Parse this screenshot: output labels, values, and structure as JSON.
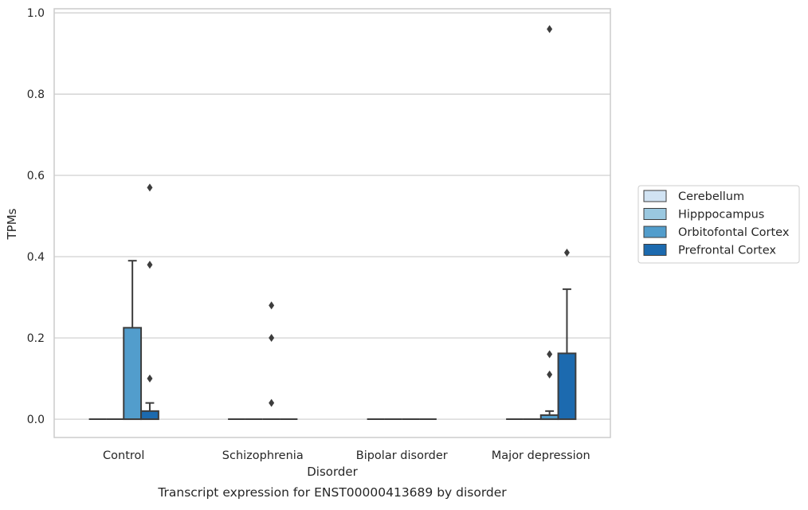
{
  "chart_data": {
    "type": "boxplot",
    "caption": "Transcript expression for ENST00000413689 by disorder",
    "xlabel": "Disorder",
    "ylabel": "TPMs",
    "ylim": [
      -0.045,
      1.01
    ],
    "yticks": [
      0.0,
      0.2,
      0.4,
      0.6,
      0.8,
      1.0
    ],
    "ytick_labels": [
      "0.0",
      "0.2",
      "0.4",
      "0.6",
      "0.8",
      "1.0"
    ],
    "grid": "horizontal",
    "legend_position": "right",
    "categories": [
      "Control",
      "Schizophrenia",
      "Bipolar disorder",
      "Major depression"
    ],
    "series": [
      {
        "name": "Cerebellum",
        "color": "#d1e3f3",
        "boxes": [
          {
            "q1": 0,
            "median": 0,
            "q3": 0,
            "whislo": 0,
            "whishi": 0,
            "fliers": []
          },
          {
            "q1": 0,
            "median": 0,
            "q3": 0,
            "whislo": 0,
            "whishi": 0,
            "fliers": []
          },
          {
            "q1": 0,
            "median": 0,
            "q3": 0,
            "whislo": 0,
            "whishi": 0,
            "fliers": []
          },
          {
            "q1": 0,
            "median": 0,
            "q3": 0,
            "whislo": 0,
            "whishi": 0,
            "fliers": []
          }
        ]
      },
      {
        "name": "Hipppocampus",
        "color": "#9ac8e0",
        "boxes": [
          {
            "q1": 0,
            "median": 0,
            "q3": 0,
            "whislo": 0,
            "whishi": 0,
            "fliers": []
          },
          {
            "q1": 0,
            "median": 0,
            "q3": 0,
            "whislo": 0,
            "whishi": 0,
            "fliers": []
          },
          {
            "q1": 0,
            "median": 0,
            "q3": 0,
            "whislo": 0,
            "whishi": 0,
            "fliers": []
          },
          {
            "q1": 0,
            "median": 0,
            "q3": 0,
            "whislo": 0,
            "whishi": 0,
            "fliers": []
          }
        ]
      },
      {
        "name": "Orbitofontal Cortex",
        "color": "#529dcc",
        "boxes": [
          {
            "q1": 0,
            "median": 0,
            "q3": 0.225,
            "whislo": 0,
            "whishi": 0.39,
            "fliers": []
          },
          {
            "q1": 0,
            "median": 0,
            "q3": 0,
            "whislo": 0,
            "whishi": 0,
            "fliers": [
              0.04,
              0.2,
              0.28
            ]
          },
          {
            "q1": 0,
            "median": 0,
            "q3": 0,
            "whislo": 0,
            "whishi": 0,
            "fliers": []
          },
          {
            "q1": 0,
            "median": 0,
            "q3": 0.01,
            "whislo": 0,
            "whishi": 0.02,
            "fliers": [
              0.11,
              0.16,
              0.96
            ]
          }
        ]
      },
      {
        "name": "Prefrontal Cortex",
        "color": "#1c6aaf",
        "boxes": [
          {
            "q1": 0,
            "median": 0,
            "q3": 0.02,
            "whislo": 0,
            "whishi": 0.04,
            "fliers": [
              0.1,
              0.38,
              0.57
            ]
          },
          {
            "q1": 0,
            "median": 0,
            "q3": 0,
            "whislo": 0,
            "whishi": 0,
            "fliers": []
          },
          {
            "q1": 0,
            "median": 0,
            "q3": 0,
            "whislo": 0,
            "whishi": 0,
            "fliers": []
          },
          {
            "q1": 0,
            "median": 0,
            "q3": 0.162,
            "whislo": 0,
            "whishi": 0.32,
            "fliers": [
              0.41
            ]
          }
        ]
      }
    ]
  }
}
